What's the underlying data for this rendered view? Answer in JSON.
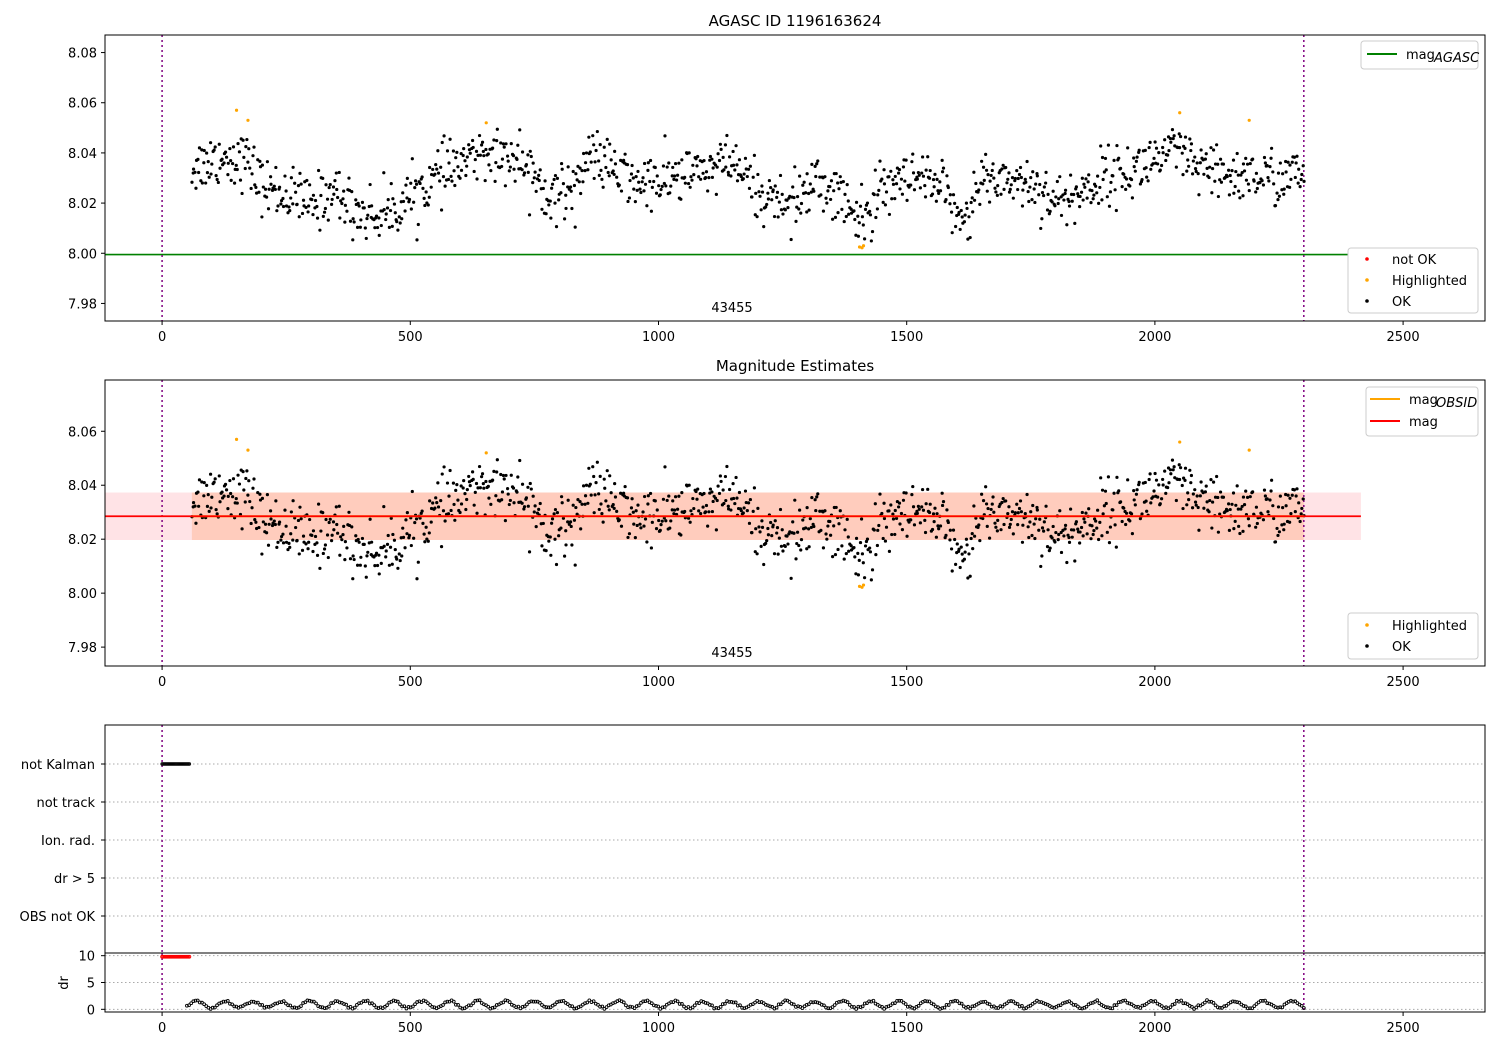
{
  "chart_data": [
    {
      "type": "scatter",
      "title": "AGASC ID 1196163624",
      "annotation": "43455",
      "xlim": [
        -115,
        2665
      ],
      "ylim": [
        7.973,
        8.087
      ],
      "xticks": [
        0,
        500,
        1000,
        1500,
        2000,
        2500
      ],
      "yticks": [
        7.98,
        8.0,
        8.02,
        8.04,
        8.06,
        8.08
      ],
      "ytick_labels": [
        "7.98",
        "8.00",
        "8.02",
        "8.04",
        "8.06",
        "8.08"
      ],
      "vlines": [
        0,
        2300
      ],
      "hline": {
        "y": 7.9995,
        "label": "mag",
        "label_sub": "AGASC",
        "color": "#008000"
      },
      "legend_top": [
        {
          "label": "mag",
          "sub": "AGASC",
          "color": "#008000",
          "kind": "line"
        }
      ],
      "legend_bottom": [
        {
          "label": "not OK",
          "color": "#ff0000",
          "kind": "dot"
        },
        {
          "label": "Highlighted",
          "color": "#ffa500",
          "kind": "dot"
        },
        {
          "label": "OK",
          "color": "#000000",
          "kind": "dot"
        }
      ],
      "series": [
        {
          "name": "OK",
          "color": "#000000",
          "x_start": 60,
          "x_end": 2300,
          "count": 1150
        },
        {
          "name": "Highlighted",
          "color": "#ffa500",
          "x": [
            150,
            173,
            653,
            1405,
            1410,
            1413,
            2050,
            2190
          ],
          "y": [
            8.057,
            8.053,
            8.052,
            8.0025,
            8.0022,
            8.003,
            8.056,
            8.053
          ]
        }
      ],
      "trend": {
        "x": [
          60,
          110,
          150,
          175,
          200,
          260,
          300,
          345,
          390,
          430,
          470,
          510,
          560,
          610,
          660,
          700,
          740,
          790,
          840,
          870,
          900,
          950,
          1000,
          1050,
          1100,
          1150,
          1190,
          1220,
          1270,
          1320,
          1360,
          1395,
          1410,
          1440,
          1480,
          1520,
          1560,
          1600,
          1630,
          1650,
          1700,
          1760,
          1810,
          1860,
          1900,
          1950,
          2000,
          2050,
          2080,
          2120,
          2160,
          2200,
          2240,
          2300
        ],
        "y": [
          8.034,
          8.038,
          8.038,
          8.036,
          8.027,
          8.023,
          8.019,
          8.025,
          8.017,
          8.015,
          8.018,
          8.024,
          8.031,
          8.036,
          8.041,
          8.038,
          8.034,
          8.022,
          8.03,
          8.04,
          8.034,
          8.028,
          8.028,
          8.031,
          8.033,
          8.036,
          8.026,
          8.022,
          8.02,
          8.028,
          8.024,
          8.014,
          8.012,
          8.021,
          8.027,
          8.029,
          8.026,
          8.018,
          8.014,
          8.03,
          8.03,
          8.027,
          8.02,
          8.025,
          8.031,
          8.032,
          8.038,
          8.04,
          8.034,
          8.031,
          8.031,
          8.031,
          8.03,
          8.031
        ]
      }
    },
    {
      "type": "scatter",
      "title": "Magnitude Estimates",
      "annotation": "43455",
      "xlim": [
        -115,
        2665
      ],
      "ylim": [
        7.973,
        8.079
      ],
      "xticks": [
        0,
        500,
        1000,
        1500,
        2000,
        2500
      ],
      "yticks": [
        7.98,
        8.0,
        8.02,
        8.04,
        8.06
      ],
      "ytick_labels": [
        "7.98",
        "8.00",
        "8.02",
        "8.04",
        "8.06"
      ],
      "vlines": [
        0,
        2300
      ],
      "mag_line": {
        "y": 8.0285,
        "color": "#ff0000",
        "x_end": 2415
      },
      "mag_band": {
        "y0": 8.0197,
        "y1": 8.0373,
        "x_end": 2415
      },
      "obsid_band": {
        "x0": 60,
        "x1": 2300
      },
      "legend_top": [
        {
          "label": "mag",
          "sub": "OBSID",
          "color": "#ffa500",
          "kind": "line"
        },
        {
          "label": "mag",
          "sub": "",
          "color": "#ff0000",
          "kind": "line"
        }
      ],
      "legend_bottom": [
        {
          "label": "Highlighted",
          "color": "#ffa500",
          "kind": "dot"
        },
        {
          "label": "OK",
          "color": "#000000",
          "kind": "dot"
        }
      ]
    },
    {
      "type": "scatter",
      "xlim": [
        -115,
        2665
      ],
      "xticks": [
        0,
        500,
        1000,
        1500,
        2000,
        2500
      ],
      "flag_categories": [
        "not Kalman",
        "not track",
        "Ion. rad.",
        "dr > 5",
        "OBS not OK"
      ],
      "flag_points": {
        "category": "not Kalman",
        "x_start": 0,
        "x_end": 55
      },
      "vlines": [
        0,
        2300
      ]
    },
    {
      "type": "scatter",
      "ylabel": "dr",
      "xlim": [
        -115,
        2665
      ],
      "ylim": [
        -0.5,
        10.5
      ],
      "xticks": [
        0,
        500,
        1000,
        1500,
        2000,
        2500
      ],
      "yticks": [
        0,
        5,
        10
      ],
      "ytick_labels": [
        "0",
        "5",
        "10"
      ],
      "vlines": [
        0,
        2300
      ],
      "red_points": {
        "x_start": 0,
        "x_end": 55,
        "y": 9.8
      },
      "black_points": {
        "x_start": 50,
        "x_end": 2300,
        "y_min": 0.2,
        "y_max": 1.6
      }
    }
  ]
}
